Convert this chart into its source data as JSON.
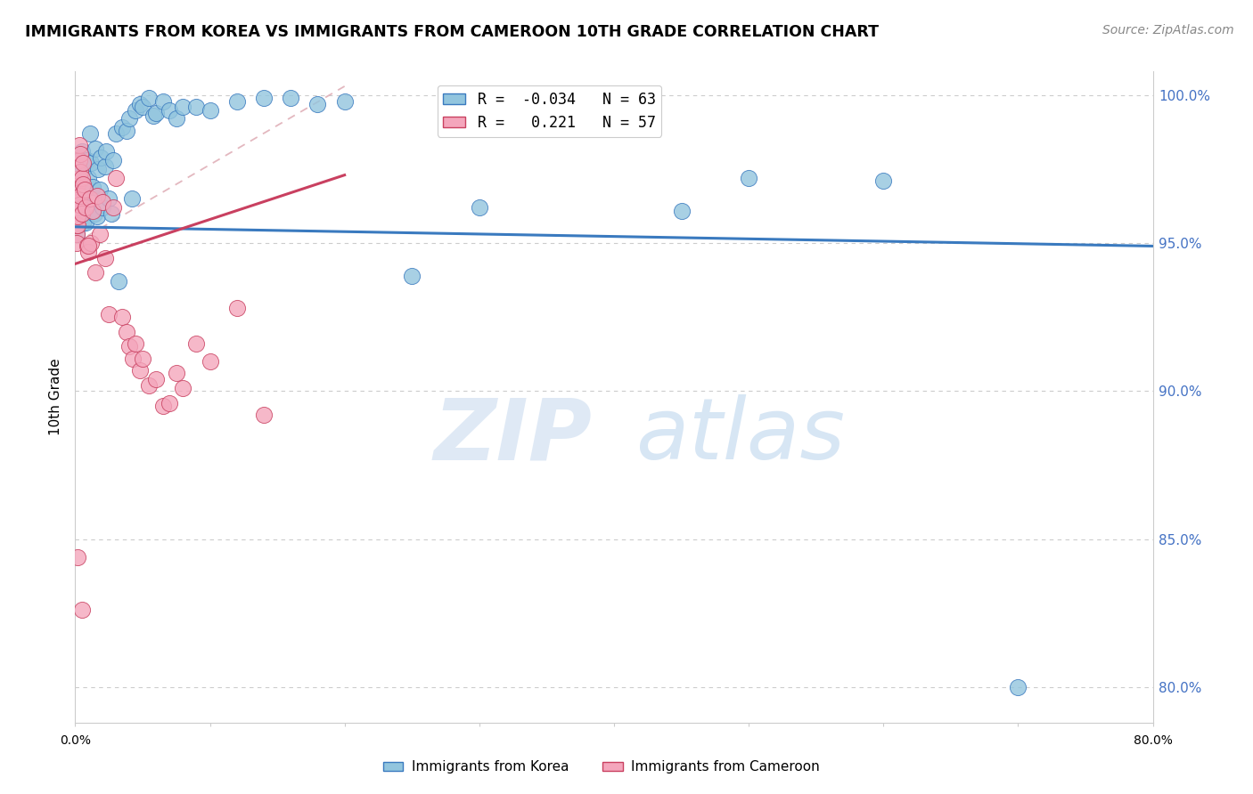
{
  "title": "IMMIGRANTS FROM KOREA VS IMMIGRANTS FROM CAMEROON 10TH GRADE CORRELATION CHART",
  "source": "Source: ZipAtlas.com",
  "ylabel": "10th Grade",
  "y_ticks": [
    80.0,
    85.0,
    90.0,
    95.0,
    100.0
  ],
  "x_range": [
    0.0,
    0.8
  ],
  "y_range": [
    0.788,
    1.008
  ],
  "korea_R": -0.034,
  "cameroon_R": 0.221,
  "korea_N": 63,
  "cameroon_N": 57,
  "korea_color": "#92c5de",
  "cameroon_color": "#f4a6bc",
  "korea_line_color": "#3a7abf",
  "cameroon_line_color": "#c94060",
  "dashed_line_color": "#e0b0b8",
  "watermark_zip": "ZIP",
  "watermark_atlas": "atlas",
  "korea_line_x0": 0.0,
  "korea_line_y0": 0.9555,
  "korea_line_x1": 0.8,
  "korea_line_y1": 0.949,
  "cameroon_line_x0": 0.0,
  "cameroon_line_y0": 0.943,
  "cameroon_line_x1": 0.2,
  "cameroon_line_y1": 0.973,
  "korea_x": [
    0.001,
    0.001,
    0.002,
    0.002,
    0.002,
    0.003,
    0.003,
    0.003,
    0.004,
    0.004,
    0.005,
    0.005,
    0.005,
    0.006,
    0.006,
    0.007,
    0.008,
    0.009,
    0.01,
    0.011,
    0.012,
    0.013,
    0.014,
    0.015,
    0.016,
    0.017,
    0.018,
    0.019,
    0.02,
    0.022,
    0.023,
    0.025,
    0.027,
    0.028,
    0.03,
    0.032,
    0.035,
    0.038,
    0.04,
    0.042,
    0.045,
    0.048,
    0.05,
    0.055,
    0.058,
    0.06,
    0.065,
    0.07,
    0.075,
    0.08,
    0.09,
    0.1,
    0.12,
    0.14,
    0.16,
    0.18,
    0.2,
    0.25,
    0.3,
    0.45,
    0.5,
    0.6,
    0.7
  ],
  "korea_y": [
    0.953,
    0.958,
    0.962,
    0.956,
    0.959,
    0.964,
    0.968,
    0.972,
    0.966,
    0.959,
    0.974,
    0.964,
    0.981,
    0.961,
    0.957,
    0.969,
    0.957,
    0.978,
    0.972,
    0.987,
    0.977,
    0.969,
    0.96,
    0.982,
    0.959,
    0.975,
    0.968,
    0.979,
    0.962,
    0.976,
    0.981,
    0.965,
    0.96,
    0.978,
    0.987,
    0.937,
    0.989,
    0.988,
    0.992,
    0.965,
    0.995,
    0.997,
    0.996,
    0.999,
    0.993,
    0.994,
    0.998,
    0.995,
    0.992,
    0.996,
    0.996,
    0.995,
    0.998,
    0.999,
    0.999,
    0.997,
    0.998,
    0.939,
    0.962,
    0.961,
    0.972,
    0.971,
    0.8
  ],
  "cameroon_x": [
    0.001,
    0.001,
    0.001,
    0.001,
    0.001,
    0.001,
    0.002,
    0.002,
    0.002,
    0.002,
    0.002,
    0.003,
    0.003,
    0.003,
    0.003,
    0.004,
    0.004,
    0.004,
    0.005,
    0.005,
    0.006,
    0.006,
    0.007,
    0.008,
    0.009,
    0.01,
    0.011,
    0.012,
    0.013,
    0.015,
    0.016,
    0.018,
    0.02,
    0.022,
    0.025,
    0.028,
    0.03,
    0.035,
    0.038,
    0.04,
    0.043,
    0.045,
    0.048,
    0.05,
    0.055,
    0.06,
    0.065,
    0.07,
    0.075,
    0.08,
    0.09,
    0.1,
    0.12,
    0.14,
    0.002,
    0.005,
    0.01
  ],
  "cameroon_y": [
    0.953,
    0.956,
    0.959,
    0.962,
    0.965,
    0.95,
    0.956,
    0.964,
    0.967,
    0.959,
    0.97,
    0.972,
    0.978,
    0.963,
    0.983,
    0.974,
    0.966,
    0.98,
    0.972,
    0.96,
    0.977,
    0.97,
    0.968,
    0.962,
    0.949,
    0.947,
    0.965,
    0.95,
    0.961,
    0.94,
    0.966,
    0.953,
    0.964,
    0.945,
    0.926,
    0.962,
    0.972,
    0.925,
    0.92,
    0.915,
    0.911,
    0.916,
    0.907,
    0.911,
    0.902,
    0.904,
    0.895,
    0.896,
    0.906,
    0.901,
    0.916,
    0.91,
    0.928,
    0.892,
    0.844,
    0.826,
    0.949
  ]
}
